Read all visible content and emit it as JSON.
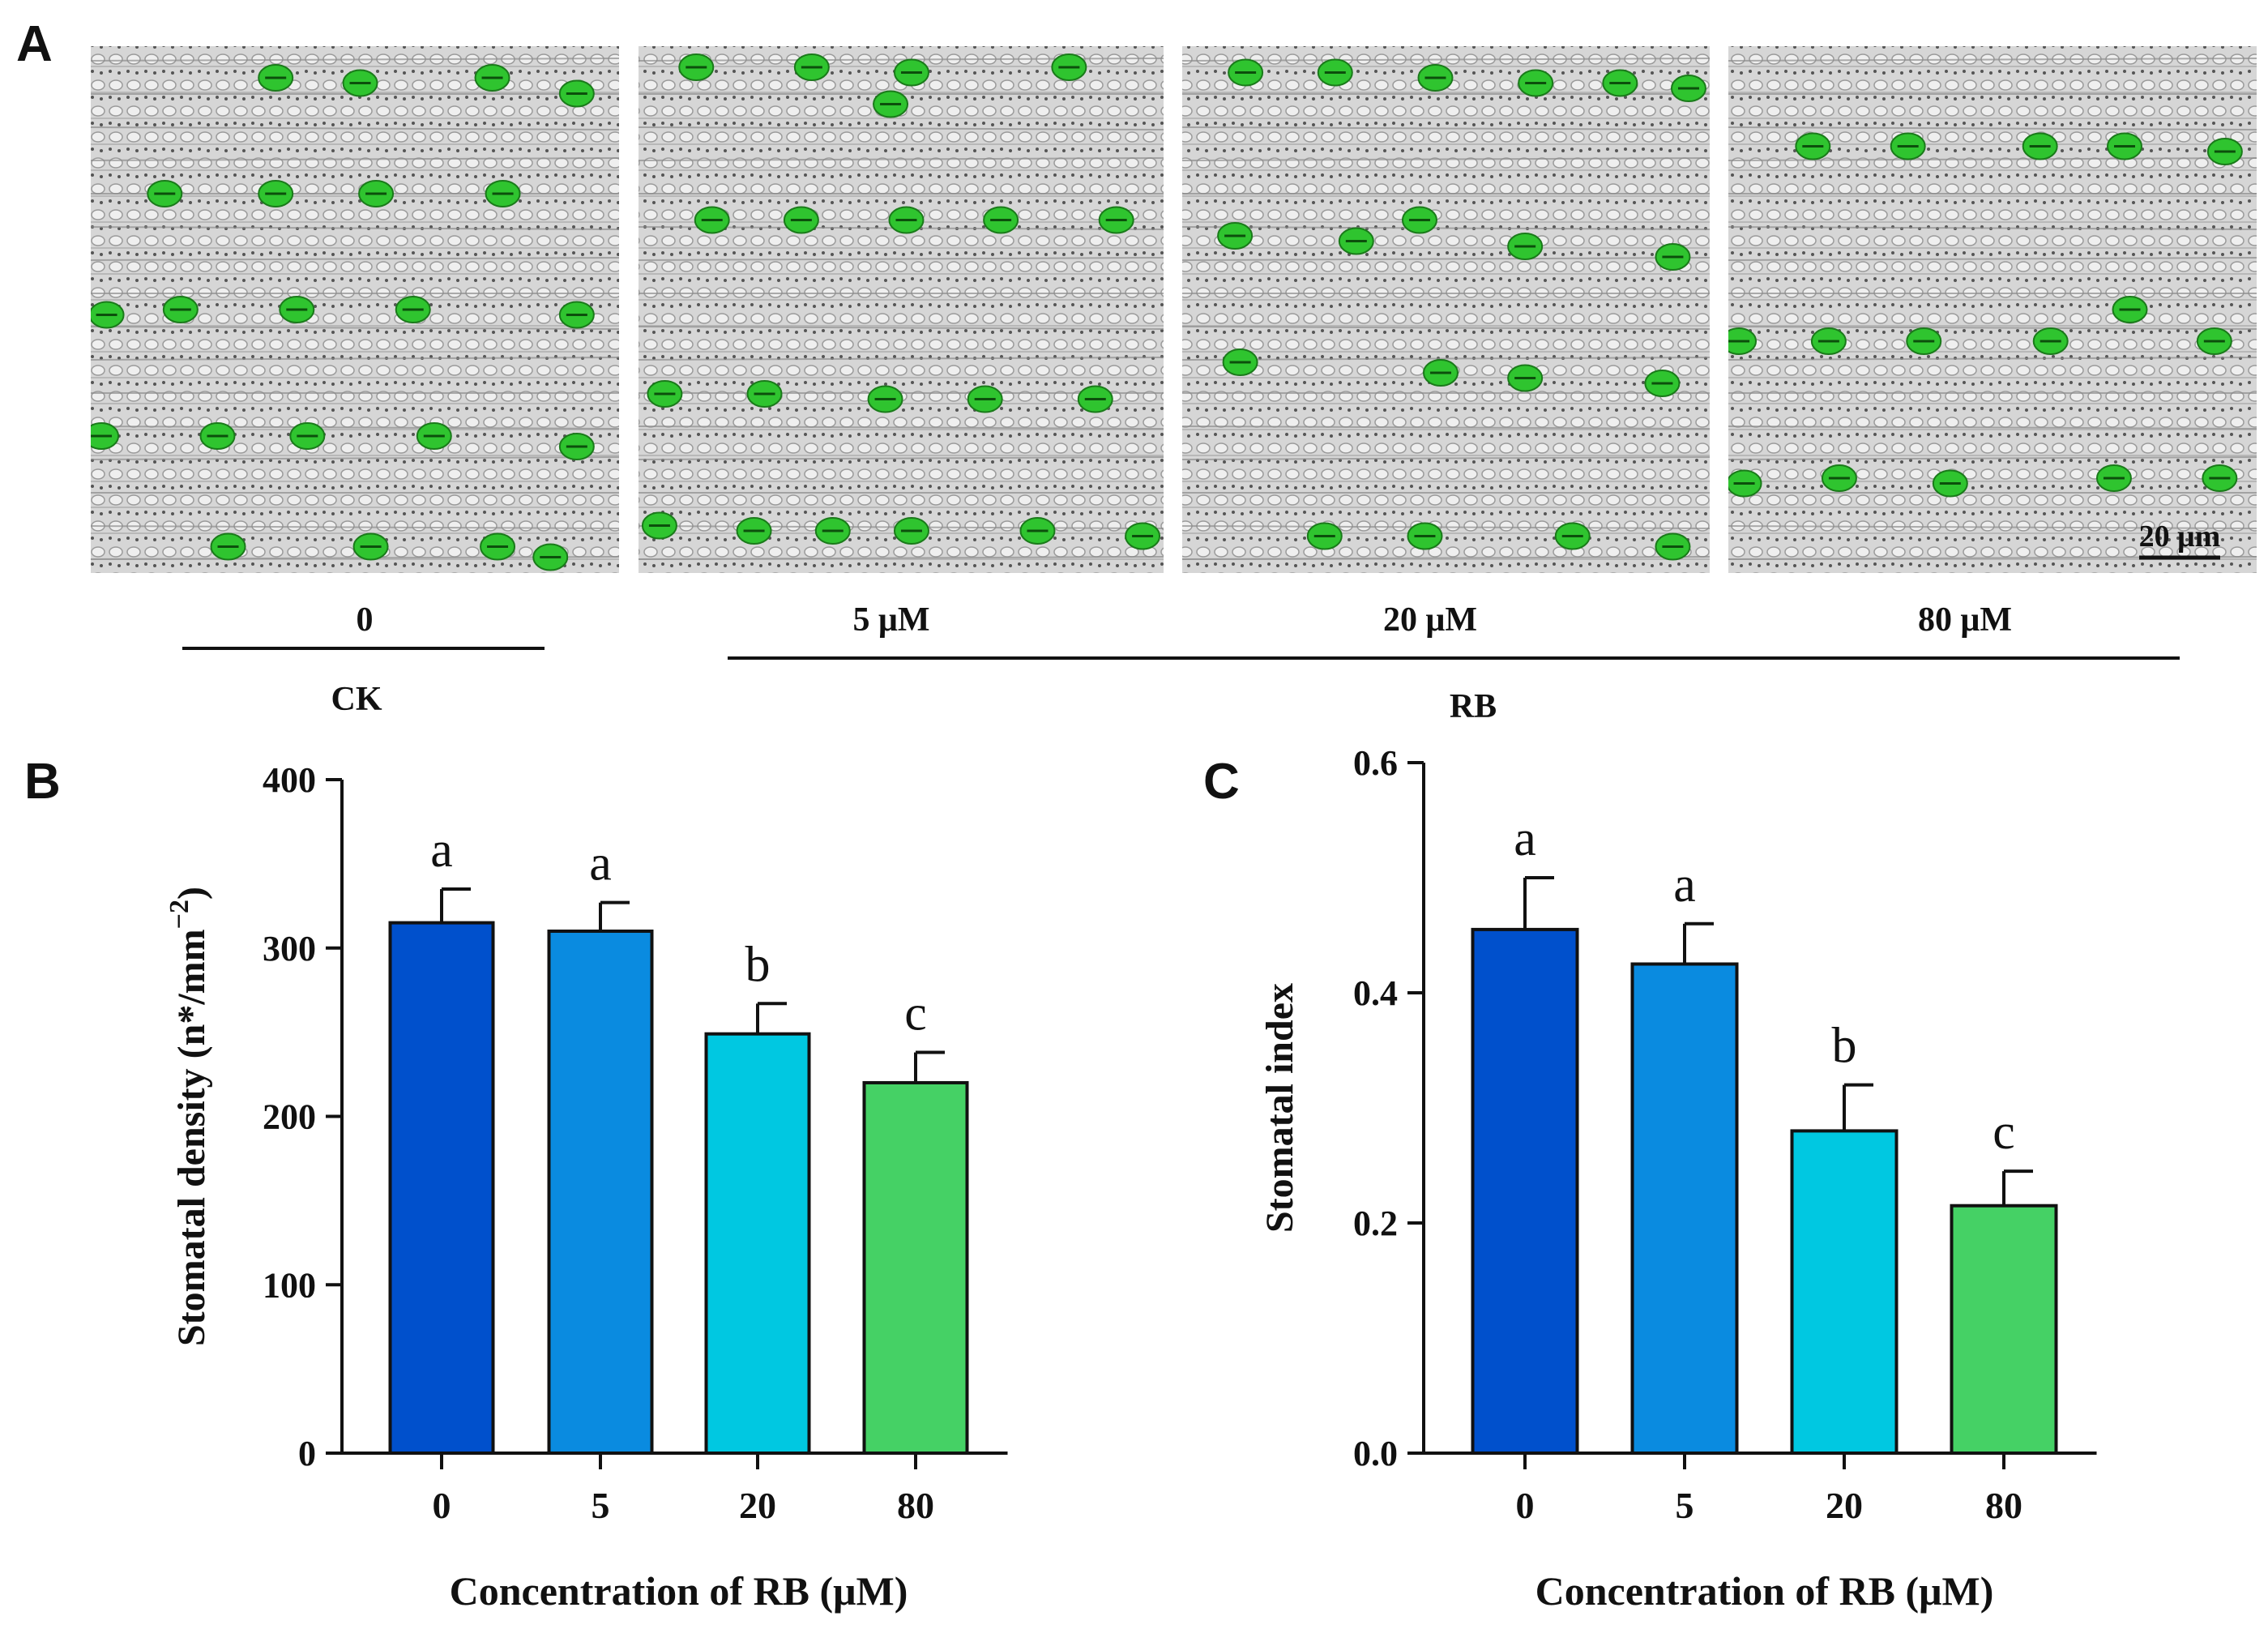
{
  "panel_a": {
    "letter": "A",
    "images": [
      {
        "label": "0",
        "kind": "micrograph"
      },
      {
        "label": "5 μM",
        "kind": "micrograph"
      },
      {
        "label": "20 μM",
        "kind": "micrograph"
      },
      {
        "label": "80 μM",
        "kind": "micrograph"
      }
    ],
    "scale_bar": "20 μm",
    "group_ck": "CK",
    "group_rb": "RB"
  },
  "colors": {
    "stomata": "#2fc42f",
    "bar_0": "#0050cc",
    "bar_5": "#0a8be0",
    "bar_20": "#00c8e1",
    "bar_80": "#45d165",
    "outline": "#111111"
  },
  "chart_data": [
    {
      "panel": "B",
      "type": "bar",
      "title": "",
      "categories": [
        "0",
        "5",
        "20",
        "80"
      ],
      "values": [
        315,
        310,
        249,
        220
      ],
      "errors": [
        20,
        17,
        18,
        18
      ],
      "significance": [
        "a",
        "a",
        "b",
        "c"
      ],
      "xlabel": "Concentration of RB (μM)",
      "ylabel": "Stomatal density (n*/mm",
      "ylabel_sup": "−2",
      "ylabel_end": ")",
      "ylim": [
        0,
        400
      ],
      "yticks": [
        "0",
        "100",
        "200",
        "300",
        "400"
      ]
    },
    {
      "panel": "C",
      "type": "bar",
      "title": "",
      "categories": [
        "0",
        "5",
        "20",
        "80"
      ],
      "values": [
        0.455,
        0.425,
        0.28,
        0.215
      ],
      "errors": [
        0.045,
        0.035,
        0.04,
        0.03
      ],
      "significance": [
        "a",
        "a",
        "b",
        "c"
      ],
      "xlabel": "Concentration of RB (μM)",
      "ylabel": "Stomatal index",
      "ylim": [
        0,
        0.6
      ],
      "yticks": [
        "0.0",
        "0.2",
        "0.4",
        "0.6"
      ]
    }
  ]
}
